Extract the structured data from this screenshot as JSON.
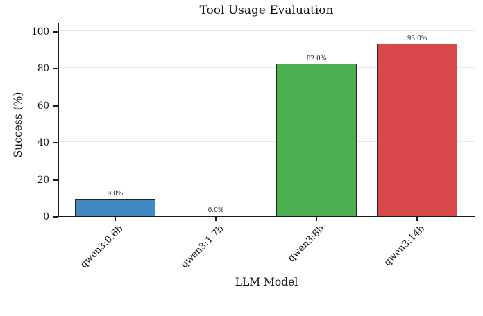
{
  "chart_data": {
    "type": "bar",
    "title": "Tool Usage Evaluation",
    "xlabel": "LLM Model",
    "ylabel": "Success (%)",
    "categories": [
      "qwen3:0.6b",
      "qwen3:1.7b",
      "qwen3:8b",
      "qwen3:14b"
    ],
    "values": [
      9.0,
      0.0,
      82.0,
      93.0
    ],
    "bar_labels": [
      "9.0%",
      "0.0%",
      "82.0%",
      "93.0%"
    ],
    "bar_colors": [
      "#4289c2",
      null,
      "#4caf50",
      "#d9484a"
    ],
    "bar_edge_color": "#262626",
    "yticks": [
      0,
      20,
      40,
      60,
      80,
      100
    ],
    "ylim": [
      0,
      105
    ],
    "grid": true,
    "legend_position": null,
    "x_tick_rotation_deg": 45
  }
}
